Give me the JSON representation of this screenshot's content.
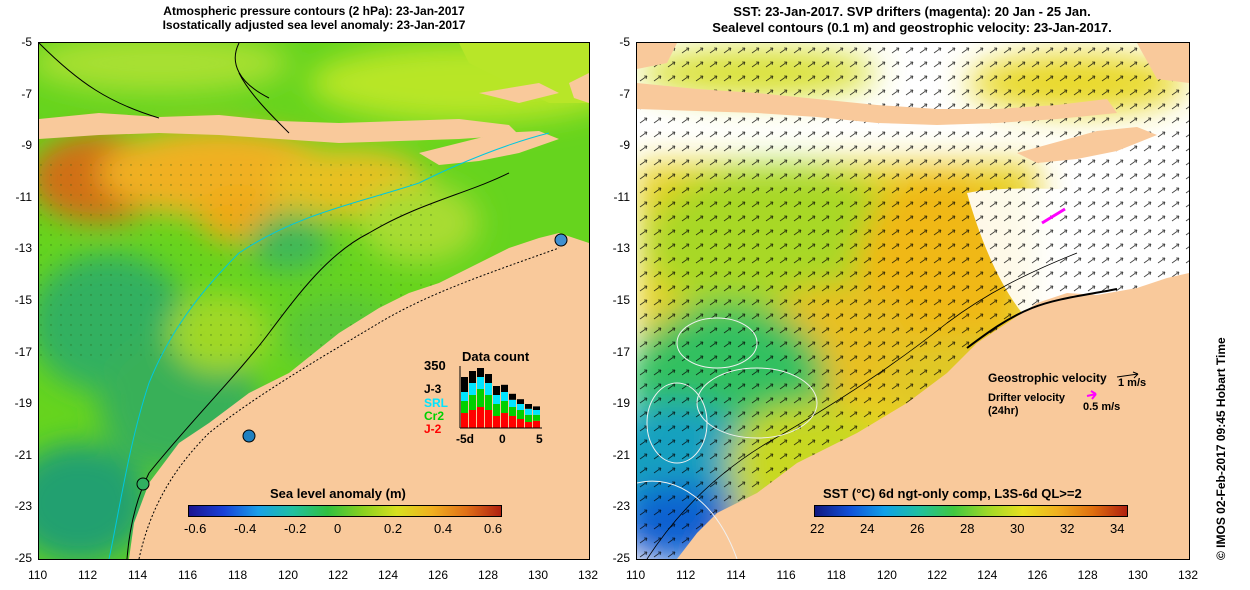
{
  "left_panel": {
    "title_line1": "Atmospheric pressure contours (2 hPa): 23-Jan-2017",
    "title_line2": "Isostatically adjusted sea level anomaly: 23-Jan-2017",
    "x_ticks": [
      "110",
      "112",
      "114",
      "116",
      "118",
      "120",
      "122",
      "124",
      "126",
      "128",
      "130",
      "132"
    ],
    "y_ticks": [
      "-5",
      "-7",
      "-9",
      "-11",
      "-13",
      "-15",
      "-17",
      "-19",
      "-21",
      "-23",
      "-25"
    ],
    "colorbar": {
      "title": "Sea level anomaly (m)",
      "ticks": [
        "-0.6",
        "-0.4",
        "-0.2",
        "0",
        "0.2",
        "0.4",
        "0.6"
      ]
    },
    "data_count": {
      "title": "Data count",
      "max_label": "350",
      "missions": [
        {
          "name": "J-3",
          "color": "#000000"
        },
        {
          "name": "SRL",
          "color": "#00e5ff"
        },
        {
          "name": "Cr2",
          "color": "#00d000"
        },
        {
          "name": "J-2",
          "color": "#ff0000"
        }
      ],
      "x_ticks": [
        "-5d",
        "0",
        "5"
      ]
    }
  },
  "right_panel": {
    "title_line1": "SST: 23-Jan-2017. SVP drifters (magenta): 20 Jan - 25 Jan.",
    "title_line2": "Sealevel contours (0.1 m) and geostrophic velocity: 23-Jan-2017.",
    "x_ticks": [
      "110",
      "112",
      "114",
      "116",
      "118",
      "120",
      "122",
      "124",
      "126",
      "128",
      "130",
      "132"
    ],
    "y_ticks": [
      "-5",
      "-7",
      "-9",
      "-11",
      "-13",
      "-15",
      "-17",
      "-19",
      "-21",
      "-23",
      "-25"
    ],
    "legend": {
      "geostrophic_label": "Geostrophic velocity",
      "geostrophic_scale": "1 m/s",
      "drifter_label": "Drifter velocity",
      "drifter_sub": "(24hr)",
      "drifter_scale": "0.5 m/s",
      "drifter_color": "#ff00ff"
    },
    "colorbar": {
      "title": "SST (°C) 6d ngt-only comp, L3S-6d QL>=2",
      "ticks": [
        "22",
        "24",
        "26",
        "28",
        "30",
        "32",
        "34"
      ]
    }
  },
  "side_credit": "©  IMOS 02-Feb-2017 09:45 Hobart Time",
  "colors": {
    "land": "#f9c99b",
    "sea_mid": "#66d41e",
    "warm": "#f0a020",
    "hot": "#c85c10",
    "cool": "#2aa860",
    "sst_cold": "#1450c8"
  }
}
